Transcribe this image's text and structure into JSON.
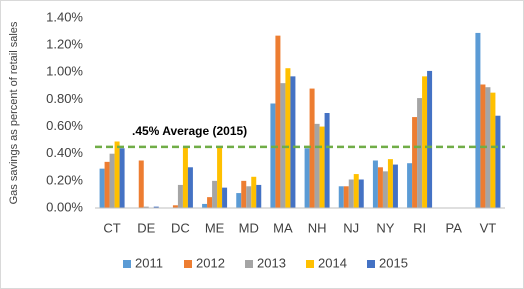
{
  "chart_data": {
    "type": "bar",
    "y_label": "Gas savings as percent of retail sales",
    "categories": [
      "CT",
      "DE",
      "DC",
      "ME",
      "MD",
      "MA",
      "NH",
      "NJ",
      "NY",
      "RI",
      "PA",
      "VT"
    ],
    "series": [
      {
        "name": "2011",
        "color": "#5b9bd5",
        "values": [
          0.29,
          0,
          0,
          0.03,
          0.11,
          0.77,
          0.44,
          0.16,
          0.35,
          0.33,
          0,
          1.29
        ]
      },
      {
        "name": "2012",
        "color": "#ed7d31",
        "values": [
          0.34,
          0.35,
          0.02,
          0.08,
          0.2,
          1.27,
          0.88,
          0.16,
          0.3,
          0.67,
          0,
          0.91
        ]
      },
      {
        "name": "2013",
        "color": "#a5a5a5",
        "values": [
          0.4,
          0.01,
          0.17,
          0.2,
          0.16,
          0.92,
          0.62,
          0.21,
          0.27,
          0.81,
          0,
          0.89
        ]
      },
      {
        "name": "2014",
        "color": "#ffc000",
        "values": [
          0.49,
          0,
          0.45,
          0.45,
          0.23,
          1.03,
          0.6,
          0.25,
          0.36,
          0.97,
          0,
          0.85
        ]
      },
      {
        "name": "2015",
        "color": "#4472c4",
        "values": [
          0.44,
          0.01,
          0.3,
          0.15,
          0.17,
          0.97,
          0.7,
          0.21,
          0.32,
          1.01,
          0,
          0.68
        ]
      }
    ],
    "ylim": [
      0,
      1.4
    ],
    "yticks": [
      {
        "value": 0,
        "label": "0.00%"
      },
      {
        "value": 0.2,
        "label": "0.20%"
      },
      {
        "value": 0.4,
        "label": "0.40%"
      },
      {
        "value": 0.6,
        "label": "0.60%"
      },
      {
        "value": 0.8,
        "label": "0.80%"
      },
      {
        "value": 1.0,
        "label": "1.00%"
      },
      {
        "value": 1.2,
        "label": "1.20%"
      },
      {
        "value": 1.4,
        "label": "1.40%"
      }
    ],
    "annotations": [
      {
        "text": ".45% Average (2015)",
        "value": 0.45,
        "color": "#70ad47"
      }
    ],
    "grid": false,
    "legend": "bottom"
  }
}
